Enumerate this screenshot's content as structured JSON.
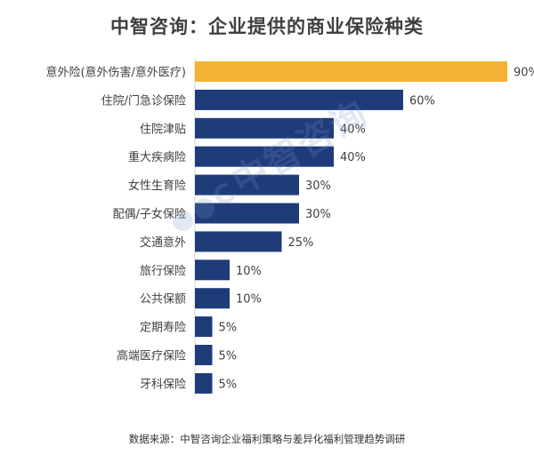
{
  "chart_data": {
    "type": "bar",
    "orientation": "horizontal",
    "title": "中智咨询：企业提供的商业保险种类",
    "categories": [
      "意外险(意外伤害/意外医疗)",
      "住院/门急诊保险",
      "住院津贴",
      "重大疾病险",
      "女性生育险",
      "配偶/子女保险",
      "交通意外",
      "旅行保险",
      "公共保额",
      "定期寿险",
      "高端医疗保险",
      "牙科保险"
    ],
    "values": [
      90,
      60,
      40,
      40,
      30,
      30,
      25,
      10,
      10,
      5,
      5,
      5
    ],
    "value_labels": [
      "90%",
      "60%",
      "40%",
      "40%",
      "30%",
      "30%",
      "25%",
      "10%",
      "10%",
      "5%",
      "5%",
      "5%"
    ],
    "highlight_index": 0,
    "xlim": [
      0,
      100
    ],
    "grid": false,
    "colors": {
      "bar": "#1f3c7a",
      "highlight": "#f5b335",
      "label": "#404040"
    }
  },
  "source": "数据来源：中智咨询企业福利策略与差异化福利管理趋势调研",
  "watermark": "中智咨询",
  "watermark_icon": "ciic-logo-icon"
}
